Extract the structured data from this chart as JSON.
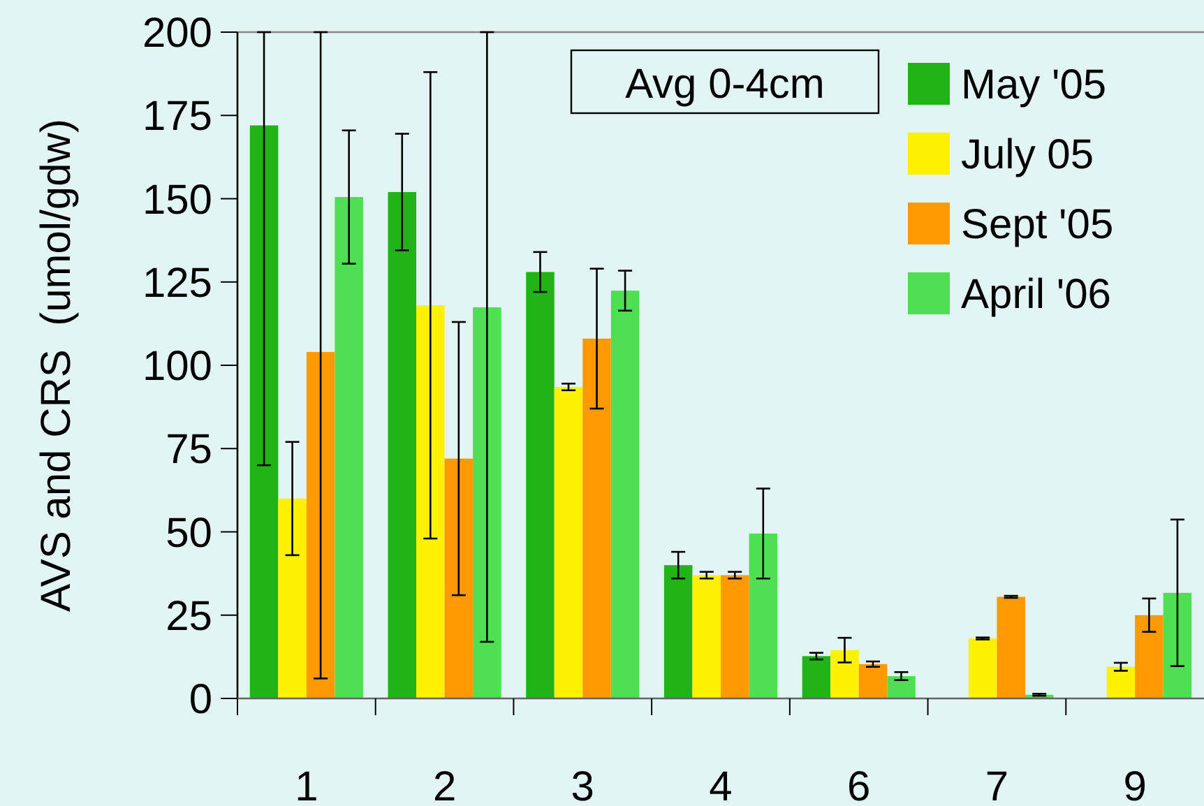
{
  "chart_data": {
    "type": "bar",
    "ylabel": "AVS and CRS  (umol/gdw)",
    "categories": [
      "1",
      "2",
      "3",
      "4",
      "6",
      "7",
      "9"
    ],
    "series": [
      {
        "name": "May '05",
        "color": "#20b418",
        "values": [
          172,
          152,
          128,
          40,
          12.7,
          null,
          null
        ],
        "errors": [
          [
            70,
            200
          ],
          17.5,
          6,
          4,
          1,
          null,
          null
        ]
      },
      {
        "name": "July 05",
        "color": "#fff200",
        "values": [
          60,
          118,
          93.5,
          37,
          14.5,
          18,
          9.5
        ],
        "errors": [
          17,
          70,
          1,
          1,
          3.7,
          0.3,
          1.2
        ]
      },
      {
        "name": "Sept '05",
        "color": "#ff9900",
        "values": [
          104,
          72,
          108,
          37,
          10.3,
          30.5,
          25
        ],
        "errors": [
          [
            6,
            200
          ],
          41,
          21,
          1,
          0.8,
          0.3,
          5
        ]
      },
      {
        "name": "April '06",
        "color": "#4ee052",
        "values": [
          150.5,
          117.4,
          122.4,
          49.5,
          6.7,
          1.1,
          31.7
        ],
        "errors": [
          20,
          [
            17,
            200
          ],
          6,
          13.5,
          1.2,
          0.3,
          22
        ]
      }
    ],
    "ylim": [
      0,
      200
    ],
    "yticks": [
      0,
      25,
      50,
      75,
      100,
      125,
      150,
      175,
      200
    ],
    "annotations": [
      "Avg 0-4cm"
    ],
    "legend": "top right",
    "grid": false
  }
}
